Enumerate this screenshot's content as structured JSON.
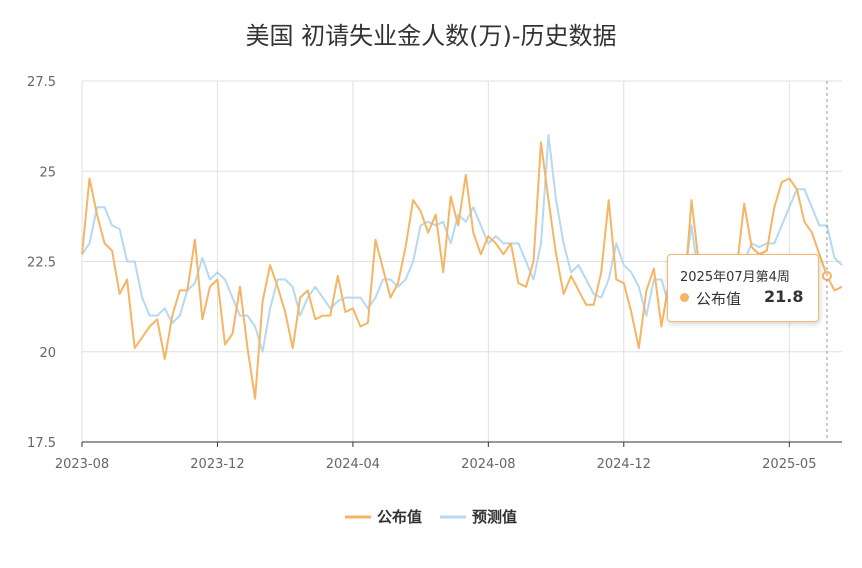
{
  "chart_data": {
    "type": "line",
    "title": "美国 初请失业金人数(万)-历史数据",
    "y_ticks": [
      "17.5",
      "20",
      "22.5",
      "25",
      "27.5"
    ],
    "ylim": [
      17.5,
      27.5
    ],
    "x_ticks": [
      "2023-08",
      "2023-12",
      "2024-04",
      "2024-08",
      "2024-12",
      "2025-05"
    ],
    "grid": true,
    "legend_position": "bottom",
    "colors": {
      "published": "#f5b565",
      "forecast": "#b7d8f0",
      "grid": "#e0e0e0",
      "axis": "#333333"
    },
    "series": [
      {
        "name": "公布值",
        "values": [
          22.7,
          24.8,
          23.8,
          23.0,
          22.8,
          21.6,
          22.0,
          20.1,
          20.4,
          20.7,
          20.9,
          19.8,
          21.0,
          21.7,
          21.7,
          23.1,
          20.9,
          21.8,
          22.0,
          20.2,
          20.5,
          21.8,
          20.1,
          18.7,
          21.4,
          22.4,
          21.8,
          21.1,
          20.1,
          21.5,
          21.7,
          20.9,
          21.0,
          21.0,
          22.1,
          21.1,
          21.2,
          20.7,
          20.8,
          23.1,
          22.3,
          21.5,
          21.9,
          22.9,
          24.2,
          23.9,
          23.3,
          23.8,
          22.2,
          24.3,
          23.5,
          24.9,
          23.3,
          22.7,
          23.2,
          23.0,
          22.7,
          23.0,
          21.9,
          21.8,
          22.5,
          25.8,
          24.2,
          22.7,
          21.6,
          22.1,
          21.7,
          21.3,
          21.3,
          22.2,
          24.2,
          22.0,
          21.9,
          21.1,
          20.1,
          21.7,
          22.3,
          20.7,
          21.9,
          21.3,
          21.5,
          24.2,
          22.4,
          22.1,
          22.2,
          21.9,
          21.9,
          22.3,
          24.1,
          22.9,
          22.7,
          22.8,
          24.0,
          24.7,
          24.8,
          24.5,
          23.6,
          23.3,
          22.7,
          22.1,
          21.7,
          21.8
        ]
      },
      {
        "name": "预测值",
        "values": [
          22.7,
          23.0,
          24.0,
          24.0,
          23.5,
          23.4,
          22.5,
          22.5,
          21.5,
          21.0,
          21.0,
          21.2,
          20.8,
          21.0,
          21.7,
          21.9,
          22.6,
          22.0,
          22.2,
          22.0,
          21.5,
          21.0,
          21.0,
          20.7,
          20.0,
          21.2,
          22.0,
          22.0,
          21.8,
          21.0,
          21.5,
          21.8,
          21.5,
          21.2,
          21.4,
          21.5,
          21.5,
          21.5,
          21.2,
          21.5,
          22.0,
          22.0,
          21.8,
          22.0,
          22.5,
          23.5,
          23.6,
          23.5,
          23.6,
          23.0,
          23.8,
          23.6,
          24.0,
          23.5,
          23.0,
          23.2,
          23.0,
          23.0,
          23.0,
          22.5,
          22.0,
          23.0,
          26.0,
          24.2,
          23.0,
          22.2,
          22.4,
          22.0,
          21.6,
          21.5,
          22.0,
          23.0,
          22.4,
          22.2,
          21.8,
          21.0,
          22.0,
          22.0,
          21.3,
          21.5,
          22.0,
          23.5,
          22.0,
          22.0,
          22.5,
          22.0,
          22.0,
          22.3,
          22.5,
          23.0,
          22.9,
          23.0,
          23.0,
          23.5,
          24.0,
          24.5,
          24.5,
          24.0,
          23.5,
          23.5,
          22.6,
          22.4
        ]
      }
    ]
  },
  "tooltip": {
    "header": "2025年07月第4周",
    "series_name": "公布值",
    "value": "21.8"
  }
}
